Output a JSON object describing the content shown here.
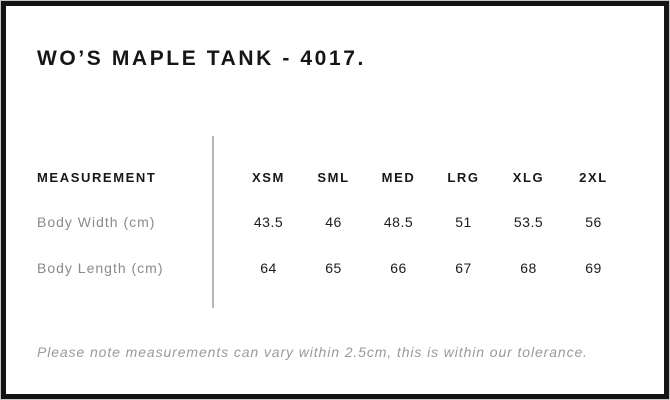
{
  "chart_data": {
    "type": "table",
    "title": "WO’S MAPLE TANK - 4017.",
    "row_header": "MEASUREMENT",
    "columns": [
      "XSM",
      "SML",
      "MED",
      "LRG",
      "XLG",
      "2XL"
    ],
    "rows": [
      {
        "label": "Body Width (cm)",
        "values": [
          43.5,
          46,
          48.5,
          51,
          53.5,
          56
        ]
      },
      {
        "label": "Body Length (cm)",
        "values": [
          64,
          65,
          66,
          67,
          68,
          69
        ]
      }
    ],
    "note": "Please note measurements can vary within 2.5cm, this is within our tolerance.",
    "layout_hint": "size chart table; label column separated from size columns by vertical gray rule"
  },
  "colors": {
    "frame_border": "#141414",
    "outer_edge": "#c6c6c6",
    "heading_text": "#161616",
    "header_text": "#181818",
    "value_text": "#1c1c1c",
    "label_text": "#8b8b8b",
    "note_text": "#9a9a9a",
    "divider": "#b6b6b6",
    "background": "#ffffff"
  }
}
